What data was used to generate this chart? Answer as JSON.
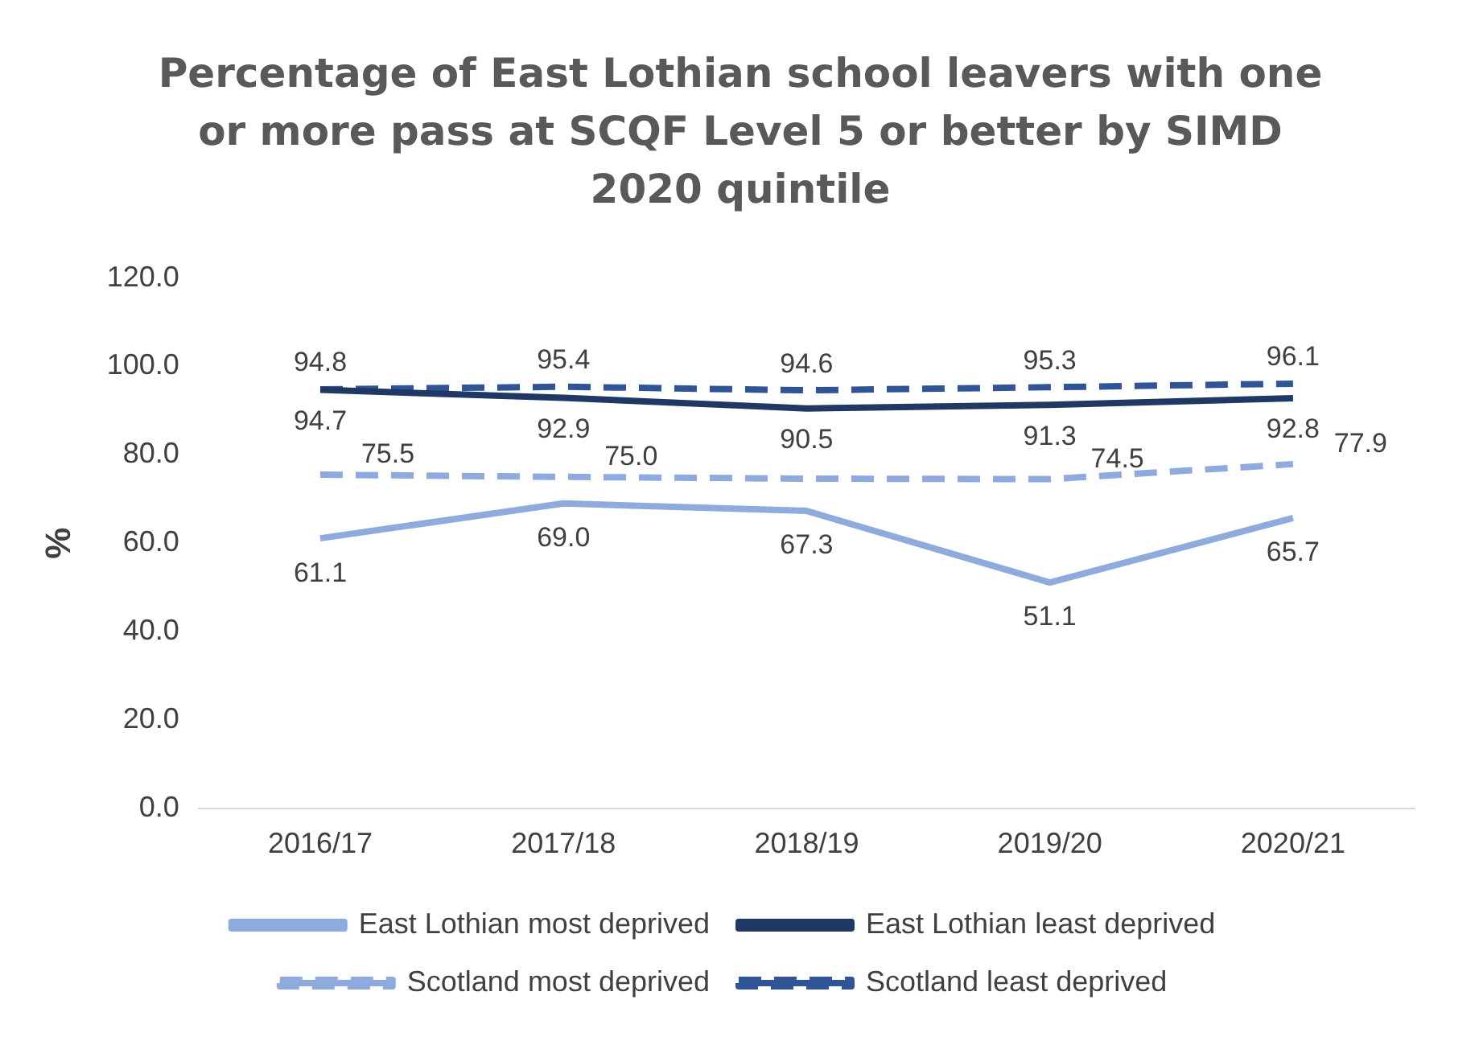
{
  "chart_data": {
    "type": "line",
    "title": "Percentage of East Lothian school leavers with one or more pass at SCQF Level 5 or better by SIMD 2020 quintile",
    "ylabel": "%",
    "categories": [
      "2016/17",
      "2017/18",
      "2018/19",
      "2019/20",
      "2020/21"
    ],
    "series": [
      {
        "name": "East Lothian most deprived",
        "color": "#8faadc",
        "line_style": "solid",
        "values": [
          61.1,
          69.0,
          67.3,
          51.1,
          65.7
        ],
        "value_labels": [
          "61.1",
          "69.0",
          "67.3",
          "51.1",
          "65.7"
        ]
      },
      {
        "name": "East Lothian least deprived",
        "color": "#1f3864",
        "line_style": "solid",
        "values": [
          94.7,
          92.9,
          90.5,
          91.3,
          92.8
        ],
        "value_labels": [
          "94.7",
          "92.9",
          "90.5",
          "91.3",
          "92.8"
        ]
      },
      {
        "name": "Scotland most deprived",
        "color": "#8faadc",
        "line_style": "dashed",
        "values": [
          75.5,
          75.0,
          74.6,
          74.5,
          77.9
        ],
        "value_labels": [
          "75.5",
          "75.0",
          null,
          "74.5",
          "77.9"
        ]
      },
      {
        "name": "Scotland least deprived",
        "color": "#2f5597",
        "line_style": "dashed",
        "values": [
          94.8,
          95.4,
          94.6,
          95.3,
          96.1
        ],
        "value_labels": [
          "94.8",
          "95.4",
          "94.6",
          "95.3",
          "96.1"
        ]
      }
    ],
    "ylim": [
      0,
      120
    ],
    "yticks": [
      {
        "value": 0,
        "label": "0.0"
      },
      {
        "value": 20,
        "label": "20.0"
      },
      {
        "value": 40,
        "label": "40.0"
      },
      {
        "value": 60,
        "label": "60.0"
      },
      {
        "value": 80,
        "label": "80.0"
      },
      {
        "value": 100,
        "label": "100.0"
      },
      {
        "value": 120,
        "label": "120.0"
      }
    ],
    "grid": false,
    "legend": "bottom",
    "marker": "none"
  }
}
